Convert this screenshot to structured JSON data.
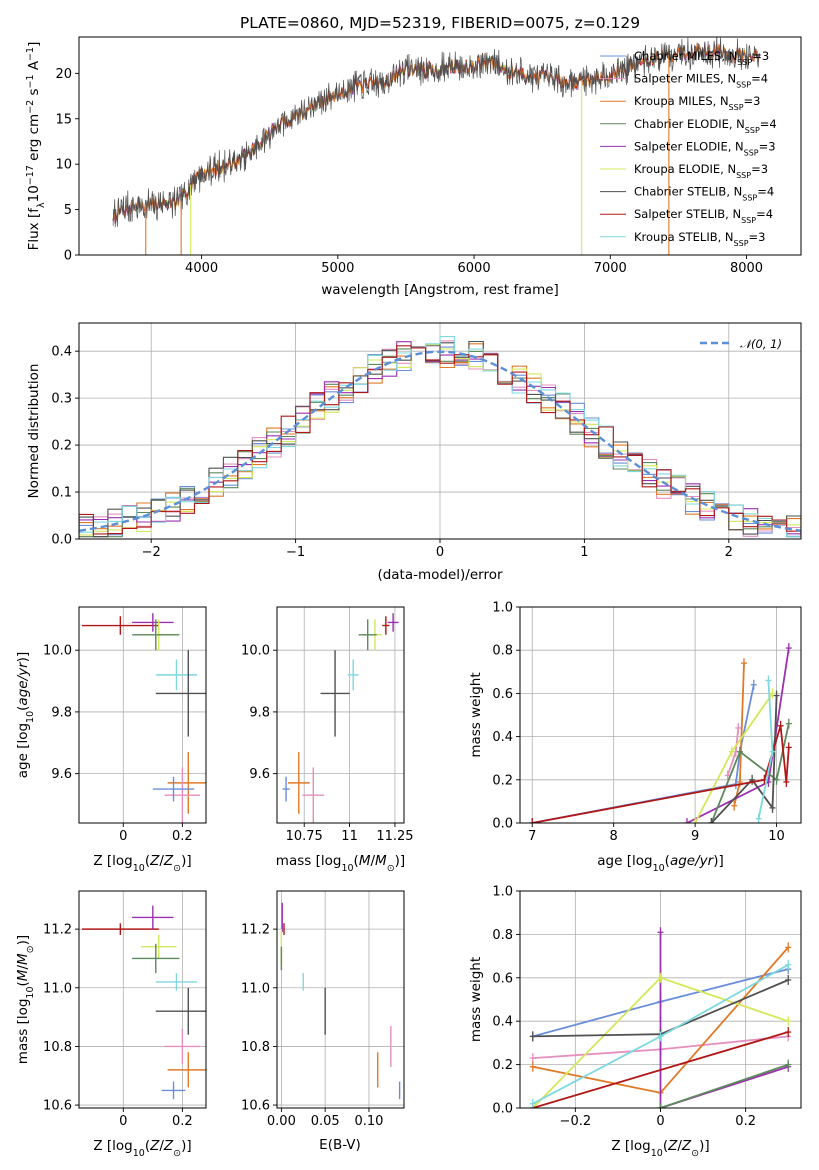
{
  "title": "PLATE=0860, MJD=52319, FIBERID=0075, z=0.129",
  "colors": {
    "blue": "#6a8fd8",
    "pink": "#e58fc0",
    "orange": "#e07a28",
    "green": "#5c8a5c",
    "purple": "#9b30b0",
    "yellow": "#d4e85a",
    "black": "#505050",
    "red": "#b01818",
    "cyan": "#7fd8e0"
  },
  "chart_data": [
    {
      "id": "spectrum",
      "type": "line",
      "xlabel": "wavelength [Angstrom, rest frame]",
      "ylabel": "Flux [f_λ10^-17 erg cm^-2 s^-1 A^-1]",
      "xlim": [
        3100,
        8400
      ],
      "ylim": [
        0,
        24
      ],
      "xticks": [
        4000,
        5000,
        6000,
        7000,
        8000
      ],
      "yticks": [
        0,
        5,
        10,
        15,
        20
      ],
      "grid": false,
      "legend": "top-right",
      "legend_entries": [
        {
          "name": "Chabrier MILES, N",
          "sub": "SSP",
          "tail": "=3",
          "color": "#6a8fd8"
        },
        {
          "name": "Salpeter MILES, N",
          "sub": "SSP",
          "tail": "=4",
          "color": "#e58fc0"
        },
        {
          "name": "Kroupa MILES, N",
          "sub": "SSP",
          "tail": "=3",
          "color": "#e07a28"
        },
        {
          "name": "Chabrier ELODIE, N",
          "sub": "SSP",
          "tail": "=4",
          "color": "#5c8a5c"
        },
        {
          "name": "Salpeter ELODIE, N",
          "sub": "SSP",
          "tail": "=3",
          "color": "#9b30b0"
        },
        {
          "name": "Kroupa ELODIE, N",
          "sub": "SSP",
          "tail": "=3",
          "color": "#d4e85a"
        },
        {
          "name": "Chabrier STELIB, N",
          "sub": "SSP",
          "tail": "=4",
          "color": "#505050"
        },
        {
          "name": "Salpeter STELIB, N",
          "sub": "SSP",
          "tail": "=4",
          "color": "#b01818"
        },
        {
          "name": "Kroupa STELIB, N",
          "sub": "SSP",
          "tail": "=3",
          "color": "#7fd8e0"
        }
      ],
      "continuum": [
        [
          3350,
          4.3
        ],
        [
          3500,
          5.5
        ],
        [
          3700,
          5.6
        ],
        [
          3850,
          6.0
        ],
        [
          3950,
          8.5
        ],
        [
          4100,
          9.5
        ],
        [
          4300,
          10.5
        ],
        [
          4500,
          13.5
        ],
        [
          4700,
          15.5
        ],
        [
          4900,
          17.0
        ],
        [
          5100,
          18.5
        ],
        [
          5300,
          18.8
        ],
        [
          5500,
          20.5
        ],
        [
          5700,
          20.3
        ],
        [
          5900,
          20.8
        ],
        [
          6100,
          21.3
        ],
        [
          6300,
          20.0
        ],
        [
          6500,
          19.5
        ],
        [
          6700,
          19.0
        ],
        [
          6900,
          19.5
        ],
        [
          7100,
          20.5
        ],
        [
          7300,
          21.5
        ],
        [
          7500,
          22.3
        ],
        [
          7700,
          22.5
        ],
        [
          8000,
          21.8
        ],
        [
          8100,
          21.7
        ]
      ]
    },
    {
      "id": "residuals",
      "type": "histogram",
      "xlabel": "(data-model)/error",
      "ylabel": "Normed distribution",
      "xlim": [
        -2.5,
        2.5
      ],
      "ylim": [
        0,
        0.46
      ],
      "xticks": [
        -2,
        -1,
        0,
        1,
        2
      ],
      "yticks": [
        0.0,
        0.1,
        0.2,
        0.3,
        0.4
      ],
      "grid": true,
      "legend": "top-right",
      "reference_label": "𝒩(0, 1)",
      "reference_color": "#5b8fd6"
    },
    {
      "id": "age-vs-Z",
      "type": "scatter",
      "xlabel": "Z [log10(Z/Z⊙)]",
      "ylabel": "age  [log10(age/yr)]",
      "xlim": [
        -0.15,
        0.28
      ],
      "ylim": [
        9.44,
        10.14
      ],
      "xticks": [
        0.0,
        0.2
      ],
      "yticks": [
        9.6,
        9.8,
        10.0
      ],
      "grid": true,
      "points": [
        {
          "x": -0.01,
          "xerr": 0.13,
          "y": 10.08,
          "yerr": 0.03,
          "color": "#b01818"
        },
        {
          "x": 0.1,
          "xerr": 0.07,
          "y": 10.09,
          "yerr": 0.03,
          "color": "#9b30b0"
        },
        {
          "x": 0.12,
          "xerr": 0.07,
          "y": 10.05,
          "yerr": 0.05,
          "color": "#d4e85a"
        },
        {
          "x": 0.11,
          "xerr": 0.08,
          "y": 10.05,
          "yerr": 0.05,
          "color": "#5c8a5c"
        },
        {
          "x": 0.18,
          "xerr": 0.07,
          "y": 9.92,
          "yerr": 0.05,
          "color": "#7fd8e0"
        },
        {
          "x": 0.22,
          "xerr": 0.11,
          "y": 9.86,
          "yerr": 0.14,
          "color": "#505050"
        },
        {
          "x": 0.22,
          "xerr": 0.07,
          "y": 9.57,
          "yerr": 0.1,
          "color": "#e07a28"
        },
        {
          "x": 0.2,
          "xerr": 0.06,
          "y": 9.53,
          "yerr": 0.09,
          "color": "#e58fc0"
        },
        {
          "x": 0.17,
          "xerr": 0.07,
          "y": 9.55,
          "yerr": 0.04,
          "color": "#6a8fd8"
        }
      ]
    },
    {
      "id": "age-vs-mass",
      "type": "scatter",
      "xlabel": "mass [log10(M/M⊙)]",
      "ylabel": "",
      "xlim": [
        10.6,
        11.3
      ],
      "ylim": [
        9.44,
        10.14
      ],
      "xticks": [
        10.75,
        11.0,
        11.25
      ],
      "yticks": [
        9.6,
        9.8,
        10.0
      ],
      "grid": true,
      "points": [
        {
          "x": 11.24,
          "xerr": 0.03,
          "y": 10.09,
          "yerr": 0.03,
          "color": "#9b30b0"
        },
        {
          "x": 11.2,
          "xerr": 0.02,
          "y": 10.08,
          "yerr": 0.03,
          "color": "#b01818"
        },
        {
          "x": 11.14,
          "xerr": 0.04,
          "y": 10.05,
          "yerr": 0.05,
          "color": "#d4e85a"
        },
        {
          "x": 11.1,
          "xerr": 0.05,
          "y": 10.05,
          "yerr": 0.05,
          "color": "#5c8a5c"
        },
        {
          "x": 11.02,
          "xerr": 0.03,
          "y": 9.92,
          "yerr": 0.05,
          "color": "#7fd8e0"
        },
        {
          "x": 10.92,
          "xerr": 0.08,
          "y": 9.86,
          "yerr": 0.14,
          "color": "#505050"
        },
        {
          "x": 10.72,
          "xerr": 0.06,
          "y": 9.57,
          "yerr": 0.1,
          "color": "#e07a28"
        },
        {
          "x": 10.8,
          "xerr": 0.06,
          "y": 9.53,
          "yerr": 0.09,
          "color": "#e58fc0"
        },
        {
          "x": 10.65,
          "xerr": 0.02,
          "y": 9.55,
          "yerr": 0.04,
          "color": "#6a8fd8"
        }
      ]
    },
    {
      "id": "weight-vs-age",
      "type": "line",
      "xlabel": "age  [log10(age/yr)]",
      "ylabel": "mass weight",
      "xlim": [
        6.85,
        10.3
      ],
      "ylim": [
        0,
        1.0
      ],
      "xticks": [
        7,
        8,
        9,
        10
      ],
      "yticks": [
        0.0,
        0.2,
        0.4,
        0.6,
        0.8,
        1.0
      ],
      "grid": true,
      "series": [
        {
          "color": "#6a8fd8",
          "x": [
            7.0,
            9.5,
            9.55,
            9.72
          ],
          "y": [
            0.0,
            0.18,
            0.33,
            0.64
          ]
        },
        {
          "color": "#e58fc0",
          "x": [
            9.4,
            9.5,
            9.53
          ],
          "y": [
            0.22,
            0.33,
            0.44
          ]
        },
        {
          "color": "#e07a28",
          "x": [
            9.48,
            9.55,
            9.6
          ],
          "y": [
            0.08,
            0.19,
            0.74
          ]
        },
        {
          "color": "#9b30b0",
          "x": [
            8.9,
            9.9,
            10.15
          ],
          "y": [
            0.0,
            0.19,
            0.81
          ]
        },
        {
          "color": "#d4e85a",
          "x": [
            9.0,
            9.45,
            9.95
          ],
          "y": [
            0.0,
            0.33,
            0.6
          ]
        },
        {
          "color": "#5c8a5c",
          "x": [
            9.2,
            9.55,
            10.0,
            10.15
          ],
          "y": [
            0.0,
            0.33,
            0.2,
            0.46
          ]
        },
        {
          "color": "#505050",
          "x": [
            9.2,
            9.7,
            9.95,
            10.0
          ],
          "y": [
            0.0,
            0.2,
            0.07,
            0.59
          ]
        },
        {
          "color": "#b01818",
          "x": [
            7.0,
            9.85,
            10.05,
            10.12,
            10.15
          ],
          "y": [
            0.0,
            0.2,
            0.45,
            0.19,
            0.35
          ]
        },
        {
          "color": "#7fd8e0",
          "x": [
            9.78,
            9.95,
            9.9
          ],
          "y": [
            0.02,
            0.33,
            0.66
          ]
        }
      ]
    },
    {
      "id": "mass-vs-Z",
      "type": "scatter",
      "xlabel": "Z [log10(Z/Z⊙)]",
      "ylabel": "mass [log10(M/M⊙)]",
      "xlim": [
        -0.15,
        0.28
      ],
      "ylim": [
        10.59,
        11.33
      ],
      "xticks": [
        0.0,
        0.2
      ],
      "yticks": [
        10.6,
        10.8,
        11.0,
        11.2
      ],
      "grid": true,
      "points": [
        {
          "x": -0.01,
          "xerr": 0.13,
          "y": 11.2,
          "yerr": 0.02,
          "color": "#b01818"
        },
        {
          "x": 0.1,
          "xerr": 0.07,
          "y": 11.24,
          "yerr": 0.04,
          "color": "#9b30b0"
        },
        {
          "x": 0.12,
          "xerr": 0.06,
          "y": 11.14,
          "yerr": 0.04,
          "color": "#d4e85a"
        },
        {
          "x": 0.11,
          "xerr": 0.08,
          "y": 11.1,
          "yerr": 0.05,
          "color": "#5c8a5c"
        },
        {
          "x": 0.18,
          "xerr": 0.07,
          "y": 11.02,
          "yerr": 0.03,
          "color": "#7fd8e0"
        },
        {
          "x": 0.22,
          "xerr": 0.11,
          "y": 10.92,
          "yerr": 0.08,
          "color": "#505050"
        },
        {
          "x": 0.22,
          "xerr": 0.07,
          "y": 10.72,
          "yerr": 0.06,
          "color": "#e07a28"
        },
        {
          "x": 0.2,
          "xerr": 0.06,
          "y": 10.8,
          "yerr": 0.06,
          "color": "#e58fc0"
        },
        {
          "x": 0.17,
          "xerr": 0.04,
          "y": 10.65,
          "yerr": 0.03,
          "color": "#6a8fd8"
        }
      ]
    },
    {
      "id": "mass-vs-ebv",
      "type": "scatter",
      "xlabel": "E(B-V)",
      "ylabel": "",
      "xlim": [
        -0.005,
        0.14
      ],
      "ylim": [
        10.59,
        11.33
      ],
      "xticks": [
        0.0,
        0.05,
        0.1
      ],
      "xtick_labels": [
        "0.00",
        "0.05",
        "0.10"
      ],
      "yticks": [
        10.6,
        10.8,
        11.0,
        11.2
      ],
      "grid": true,
      "points": [
        {
          "x": 0.001,
          "y": 11.24,
          "yerr": 0.05,
          "color": "#9b30b0"
        },
        {
          "x": 0.003,
          "y": 11.2,
          "yerr": 0.02,
          "color": "#b01818"
        },
        {
          "x": 0.0,
          "y": 11.14,
          "yerr": 0.06,
          "color": "#d4e85a"
        },
        {
          "x": 0.0,
          "y": 11.1,
          "yerr": 0.04,
          "color": "#5c8a5c"
        },
        {
          "x": 0.025,
          "y": 11.02,
          "yerr": 0.03,
          "color": "#7fd8e0"
        },
        {
          "x": 0.05,
          "y": 10.92,
          "yerr": 0.08,
          "color": "#505050"
        },
        {
          "x": 0.11,
          "y": 10.72,
          "yerr": 0.06,
          "color": "#e07a28"
        },
        {
          "x": 0.125,
          "y": 10.8,
          "yerr": 0.07,
          "color": "#e58fc0"
        },
        {
          "x": 0.135,
          "y": 10.65,
          "yerr": 0.03,
          "color": "#6a8fd8"
        }
      ]
    },
    {
      "id": "weight-vs-Z",
      "type": "line",
      "xlabel": "Z [log10(Z/Z⊙)]",
      "ylabel": "mass weight",
      "xlim": [
        -0.33,
        0.33
      ],
      "ylim": [
        0,
        1.0
      ],
      "xticks": [
        -0.2,
        0.0,
        0.2
      ],
      "yticks": [
        0.0,
        0.2,
        0.4,
        0.6,
        0.8,
        1.0
      ],
      "grid": true,
      "series": [
        {
          "color": "#6a8fd8",
          "x": [
            -0.3,
            0.0,
            0.3
          ],
          "y": [
            0.33,
            0.49,
            0.64
          ]
        },
        {
          "color": "#e58fc0",
          "x": [
            -0.3,
            0.0,
            0.3
          ],
          "y": [
            0.23,
            0.27,
            0.33
          ]
        },
        {
          "color": "#e07a28",
          "x": [
            -0.3,
            0.0,
            0.3
          ],
          "y": [
            0.19,
            0.07,
            0.74
          ]
        },
        {
          "color": "#9b30b0",
          "x": [
            0.0,
            0.0,
            0.3
          ],
          "y": [
            0.81,
            0.0,
            0.19
          ]
        },
        {
          "color": "#d4e85a",
          "x": [
            -0.3,
            0.0,
            0.3
          ],
          "y": [
            0.0,
            0.6,
            0.4
          ]
        },
        {
          "color": "#5c8a5c",
          "x": [
            0.0,
            0.3
          ],
          "y": [
            0.0,
            0.2
          ]
        },
        {
          "color": "#505050",
          "x": [
            -0.3,
            0.0,
            0.3
          ],
          "y": [
            0.33,
            0.34,
            0.59
          ]
        },
        {
          "color": "#b01818",
          "x": [
            -0.3,
            0.3
          ],
          "y": [
            0.0,
            0.35
          ]
        },
        {
          "color": "#7fd8e0",
          "x": [
            -0.3,
            0.0,
            0.3
          ],
          "y": [
            0.02,
            0.33,
            0.66
          ]
        }
      ]
    }
  ]
}
